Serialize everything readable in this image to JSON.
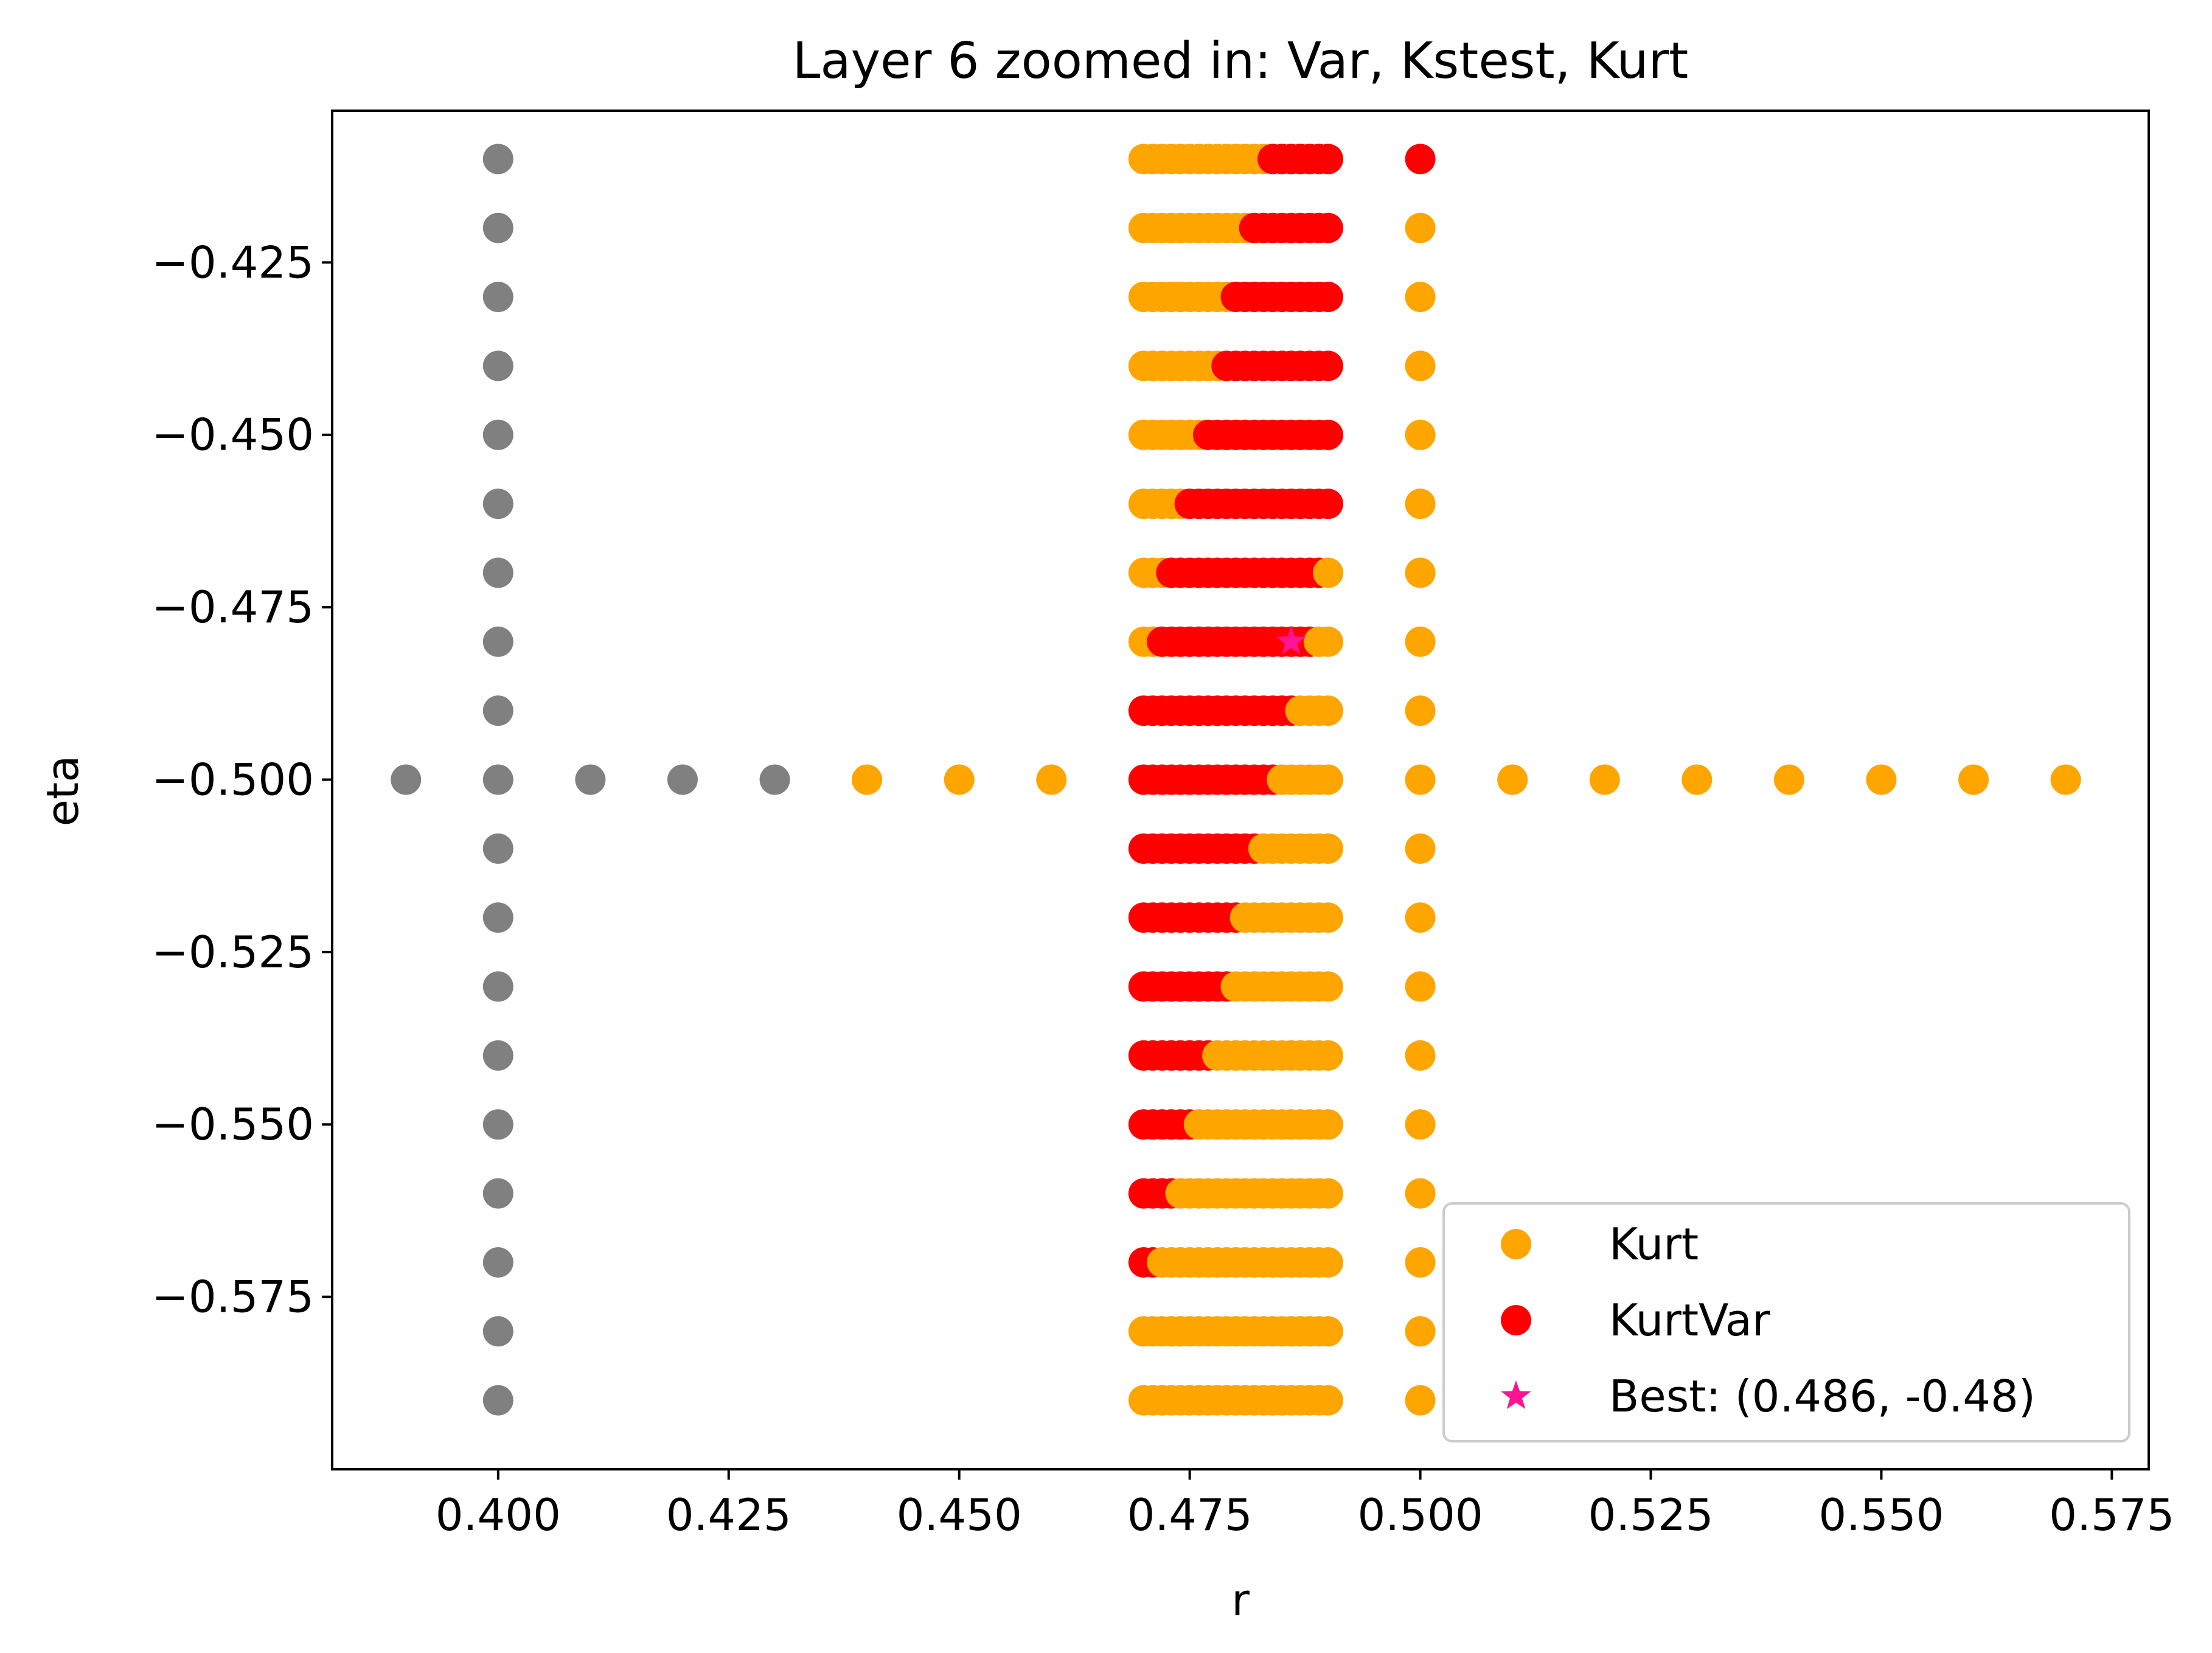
{
  "chart_data": {
    "type": "scatter",
    "title": "Layer 6 zoomed in: Var, Kstest, Kurt",
    "xlabel": "r",
    "ylabel": "eta",
    "xlim": [
      0.382,
      0.579
    ],
    "ylim": [
      -0.6,
      -0.403
    ],
    "x_ticks": [
      0.4,
      0.425,
      0.45,
      0.475,
      0.5,
      0.525,
      0.55,
      0.575
    ],
    "x_tick_labels": [
      "0.400",
      "0.425",
      "0.450",
      "0.475",
      "0.500",
      "0.525",
      "0.550",
      "0.575"
    ],
    "y_ticks": [
      -0.425,
      -0.45,
      -0.475,
      -0.5,
      -0.525,
      -0.55,
      -0.575
    ],
    "y_tick_labels": [
      "−0.425",
      "−0.450",
      "−0.475",
      "−0.500",
      "−0.525",
      "−0.550",
      "−0.575"
    ],
    "grid": false,
    "legend_position": "lower-right",
    "colors": {
      "gray": "#808080",
      "kurt": "#FFA500",
      "kurtvar": "#FF0000",
      "best": "#FF1493"
    },
    "grid_band": {
      "r_values": [
        0.47,
        0.471,
        0.472,
        0.473,
        0.474,
        0.475,
        0.476,
        0.477,
        0.478,
        0.479,
        0.48,
        0.481,
        0.482,
        0.483,
        0.484,
        0.485,
        0.486,
        0.487,
        0.488,
        0.489,
        0.49
      ],
      "rows": [
        {
          "eta": -0.41,
          "red_from": 0.484,
          "red_to": 0.49
        },
        {
          "eta": -0.42,
          "red_from": 0.482,
          "red_to": 0.49
        },
        {
          "eta": -0.43,
          "red_from": 0.48,
          "red_to": 0.49
        },
        {
          "eta": -0.44,
          "red_from": 0.479,
          "red_to": 0.49
        },
        {
          "eta": -0.45,
          "red_from": 0.477,
          "red_to": 0.49
        },
        {
          "eta": -0.46,
          "red_from": 0.475,
          "red_to": 0.49
        },
        {
          "eta": -0.47,
          "red_from": 0.473,
          "red_to": 0.489
        },
        {
          "eta": -0.48,
          "red_from": 0.472,
          "red_to": 0.488
        },
        {
          "eta": -0.49,
          "red_from": 0.47,
          "red_to": 0.486
        },
        {
          "eta": -0.5,
          "red_from": 0.47,
          "red_to": 0.484
        },
        {
          "eta": -0.51,
          "red_from": 0.47,
          "red_to": 0.482
        },
        {
          "eta": -0.52,
          "red_from": 0.47,
          "red_to": 0.48
        },
        {
          "eta": -0.53,
          "red_from": 0.47,
          "red_to": 0.479
        },
        {
          "eta": -0.54,
          "red_from": 0.47,
          "red_to": 0.477
        },
        {
          "eta": -0.55,
          "red_from": 0.47,
          "red_to": 0.475
        },
        {
          "eta": -0.56,
          "red_from": 0.47,
          "red_to": 0.473
        },
        {
          "eta": -0.57,
          "red_from": 0.47,
          "red_to": 0.471
        },
        {
          "eta": -0.58,
          "red_from": null,
          "red_to": null
        },
        {
          "eta": -0.59,
          "red_from": null,
          "red_to": null
        }
      ]
    },
    "series": [
      {
        "legend": null,
        "color": "#808080",
        "marker": "circle",
        "points": [
          [
            0.39,
            -0.5
          ],
          [
            0.41,
            -0.5
          ],
          [
            0.42,
            -0.5
          ],
          [
            0.43,
            -0.5
          ],
          [
            0.4,
            -0.41
          ],
          [
            0.4,
            -0.42
          ],
          [
            0.4,
            -0.43
          ],
          [
            0.4,
            -0.44
          ],
          [
            0.4,
            -0.45
          ],
          [
            0.4,
            -0.46
          ],
          [
            0.4,
            -0.47
          ],
          [
            0.4,
            -0.48
          ],
          [
            0.4,
            -0.49
          ],
          [
            0.4,
            -0.5
          ],
          [
            0.4,
            -0.51
          ],
          [
            0.4,
            -0.52
          ],
          [
            0.4,
            -0.53
          ],
          [
            0.4,
            -0.54
          ],
          [
            0.4,
            -0.55
          ],
          [
            0.4,
            -0.56
          ],
          [
            0.4,
            -0.57
          ],
          [
            0.4,
            -0.58
          ],
          [
            0.4,
            -0.59
          ]
        ]
      },
      {
        "name": "Kurt",
        "color": "#FFA500",
        "marker": "circle",
        "points": [
          [
            0.44,
            -0.5
          ],
          [
            0.45,
            -0.5
          ],
          [
            0.46,
            -0.5
          ],
          [
            0.51,
            -0.5
          ],
          [
            0.52,
            -0.5
          ],
          [
            0.53,
            -0.5
          ],
          [
            0.54,
            -0.5
          ],
          [
            0.55,
            -0.5
          ],
          [
            0.56,
            -0.5
          ],
          [
            0.57,
            -0.5
          ],
          [
            0.5,
            -0.42
          ],
          [
            0.5,
            -0.43
          ],
          [
            0.5,
            -0.44
          ],
          [
            0.5,
            -0.45
          ],
          [
            0.5,
            -0.46
          ],
          [
            0.5,
            -0.47
          ],
          [
            0.5,
            -0.48
          ],
          [
            0.5,
            -0.49
          ],
          [
            0.5,
            -0.5
          ],
          [
            0.5,
            -0.51
          ],
          [
            0.5,
            -0.52
          ],
          [
            0.5,
            -0.53
          ],
          [
            0.5,
            -0.54
          ],
          [
            0.5,
            -0.55
          ],
          [
            0.5,
            -0.56
          ],
          [
            0.5,
            -0.57
          ],
          [
            0.5,
            -0.58
          ],
          [
            0.5,
            -0.59
          ]
        ]
      },
      {
        "name": "KurtVar",
        "color": "#FF0000",
        "marker": "circle",
        "points": [
          [
            0.5,
            -0.41
          ]
        ]
      },
      {
        "name": "Best: (0.486, -0.48)",
        "color": "#FF1493",
        "marker": "star",
        "points": [
          [
            0.486,
            -0.48
          ]
        ]
      }
    ]
  }
}
